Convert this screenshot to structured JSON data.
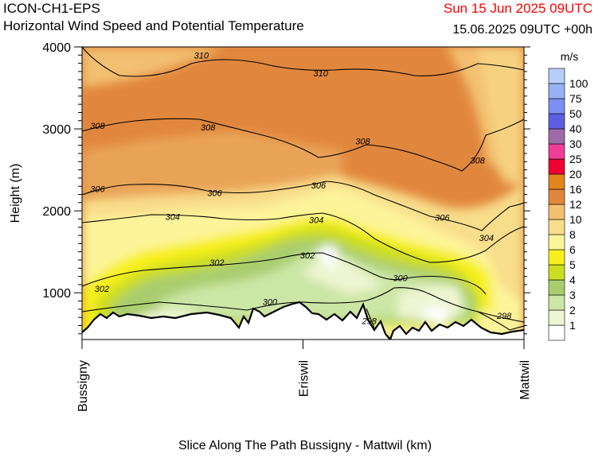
{
  "header": {
    "model": "ICON-CH1-EPS",
    "title": "Horizontal Wind Speed and Potential Temperature",
    "valid_time": "Sun 15 Jun 2025 09UTC",
    "init_time": "15.06.2025 09UTC +00h"
  },
  "chart_data": {
    "type": "cross-section",
    "title": "Horizontal Wind Speed and Potential Temperature",
    "xlabel": "Slice Along The Path Bussigny - Mattwil (km)",
    "ylabel": "Height (m)",
    "ylim": [
      430,
      4000
    ],
    "y_ticks": [
      1000,
      2000,
      3000,
      4000
    ],
    "x_ticks": [
      {
        "label": "Bussigny",
        "pos": 0
      },
      {
        "label": "Eriswil",
        "pos": 0.5
      },
      {
        "label": "Mattwil",
        "pos": 1
      }
    ],
    "colorbar": {
      "unit": "m/s",
      "levels": [
        "1",
        "2",
        "3",
        "4",
        "5",
        "6",
        "8",
        "10",
        "12",
        "16",
        "20",
        "25",
        "30",
        "40",
        "50",
        "75",
        "100"
      ],
      "colors": [
        "#ffffff",
        "#eef5d2",
        "#cce6a6",
        "#a9cd6e",
        "#ccdd22",
        "#f7f01d",
        "#fdf49a",
        "#f8dd8a",
        "#f2c071",
        "#e1873d",
        "#e0861c",
        "#ee0033",
        "#ee3e98",
        "#9e6ba8",
        "#5c5ee0",
        "#7b90f2",
        "#97b2f4",
        "#b7cff8"
      ]
    },
    "isentropes_K": [
      {
        "value": 298,
        "label": "298"
      },
      {
        "value": 300,
        "label": "300"
      },
      {
        "value": 302,
        "label": "302"
      },
      {
        "value": 304,
        "label": "304"
      },
      {
        "value": 306,
        "label": "306"
      },
      {
        "value": 308,
        "label": "308"
      },
      {
        "value": 310,
        "label": "310"
      }
    ],
    "contour_labels": [
      {
        "text": "310",
        "x": 0.27,
        "y": 3900
      },
      {
        "text": "310",
        "x": 0.54,
        "y": 3680
      },
      {
        "text": "308",
        "x": 0.035,
        "y": 3040
      },
      {
        "text": "308",
        "x": 0.285,
        "y": 3020
      },
      {
        "text": "308",
        "x": 0.635,
        "y": 2850
      },
      {
        "text": "308",
        "x": 0.895,
        "y": 2620
      },
      {
        "text": "306",
        "x": 0.035,
        "y": 2270
      },
      {
        "text": "306",
        "x": 0.3,
        "y": 2220
      },
      {
        "text": "306",
        "x": 0.535,
        "y": 2310
      },
      {
        "text": "306",
        "x": 0.815,
        "y": 1920
      },
      {
        "text": "304",
        "x": 0.205,
        "y": 1930
      },
      {
        "text": "304",
        "x": 0.53,
        "y": 1890
      },
      {
        "text": "304",
        "x": 0.915,
        "y": 1670
      },
      {
        "text": "302",
        "x": 0.305,
        "y": 1370
      },
      {
        "text": "302",
        "x": 0.51,
        "y": 1460
      },
      {
        "text": "302",
        "x": 0.045,
        "y": 1050
      },
      {
        "text": "300",
        "x": 0.425,
        "y": 890
      },
      {
        "text": "300",
        "x": 0.72,
        "y": 1180
      },
      {
        "text": "298",
        "x": 0.65,
        "y": 660
      },
      {
        "text": "298",
        "x": 0.955,
        "y": 720
      }
    ],
    "legend": "right"
  }
}
